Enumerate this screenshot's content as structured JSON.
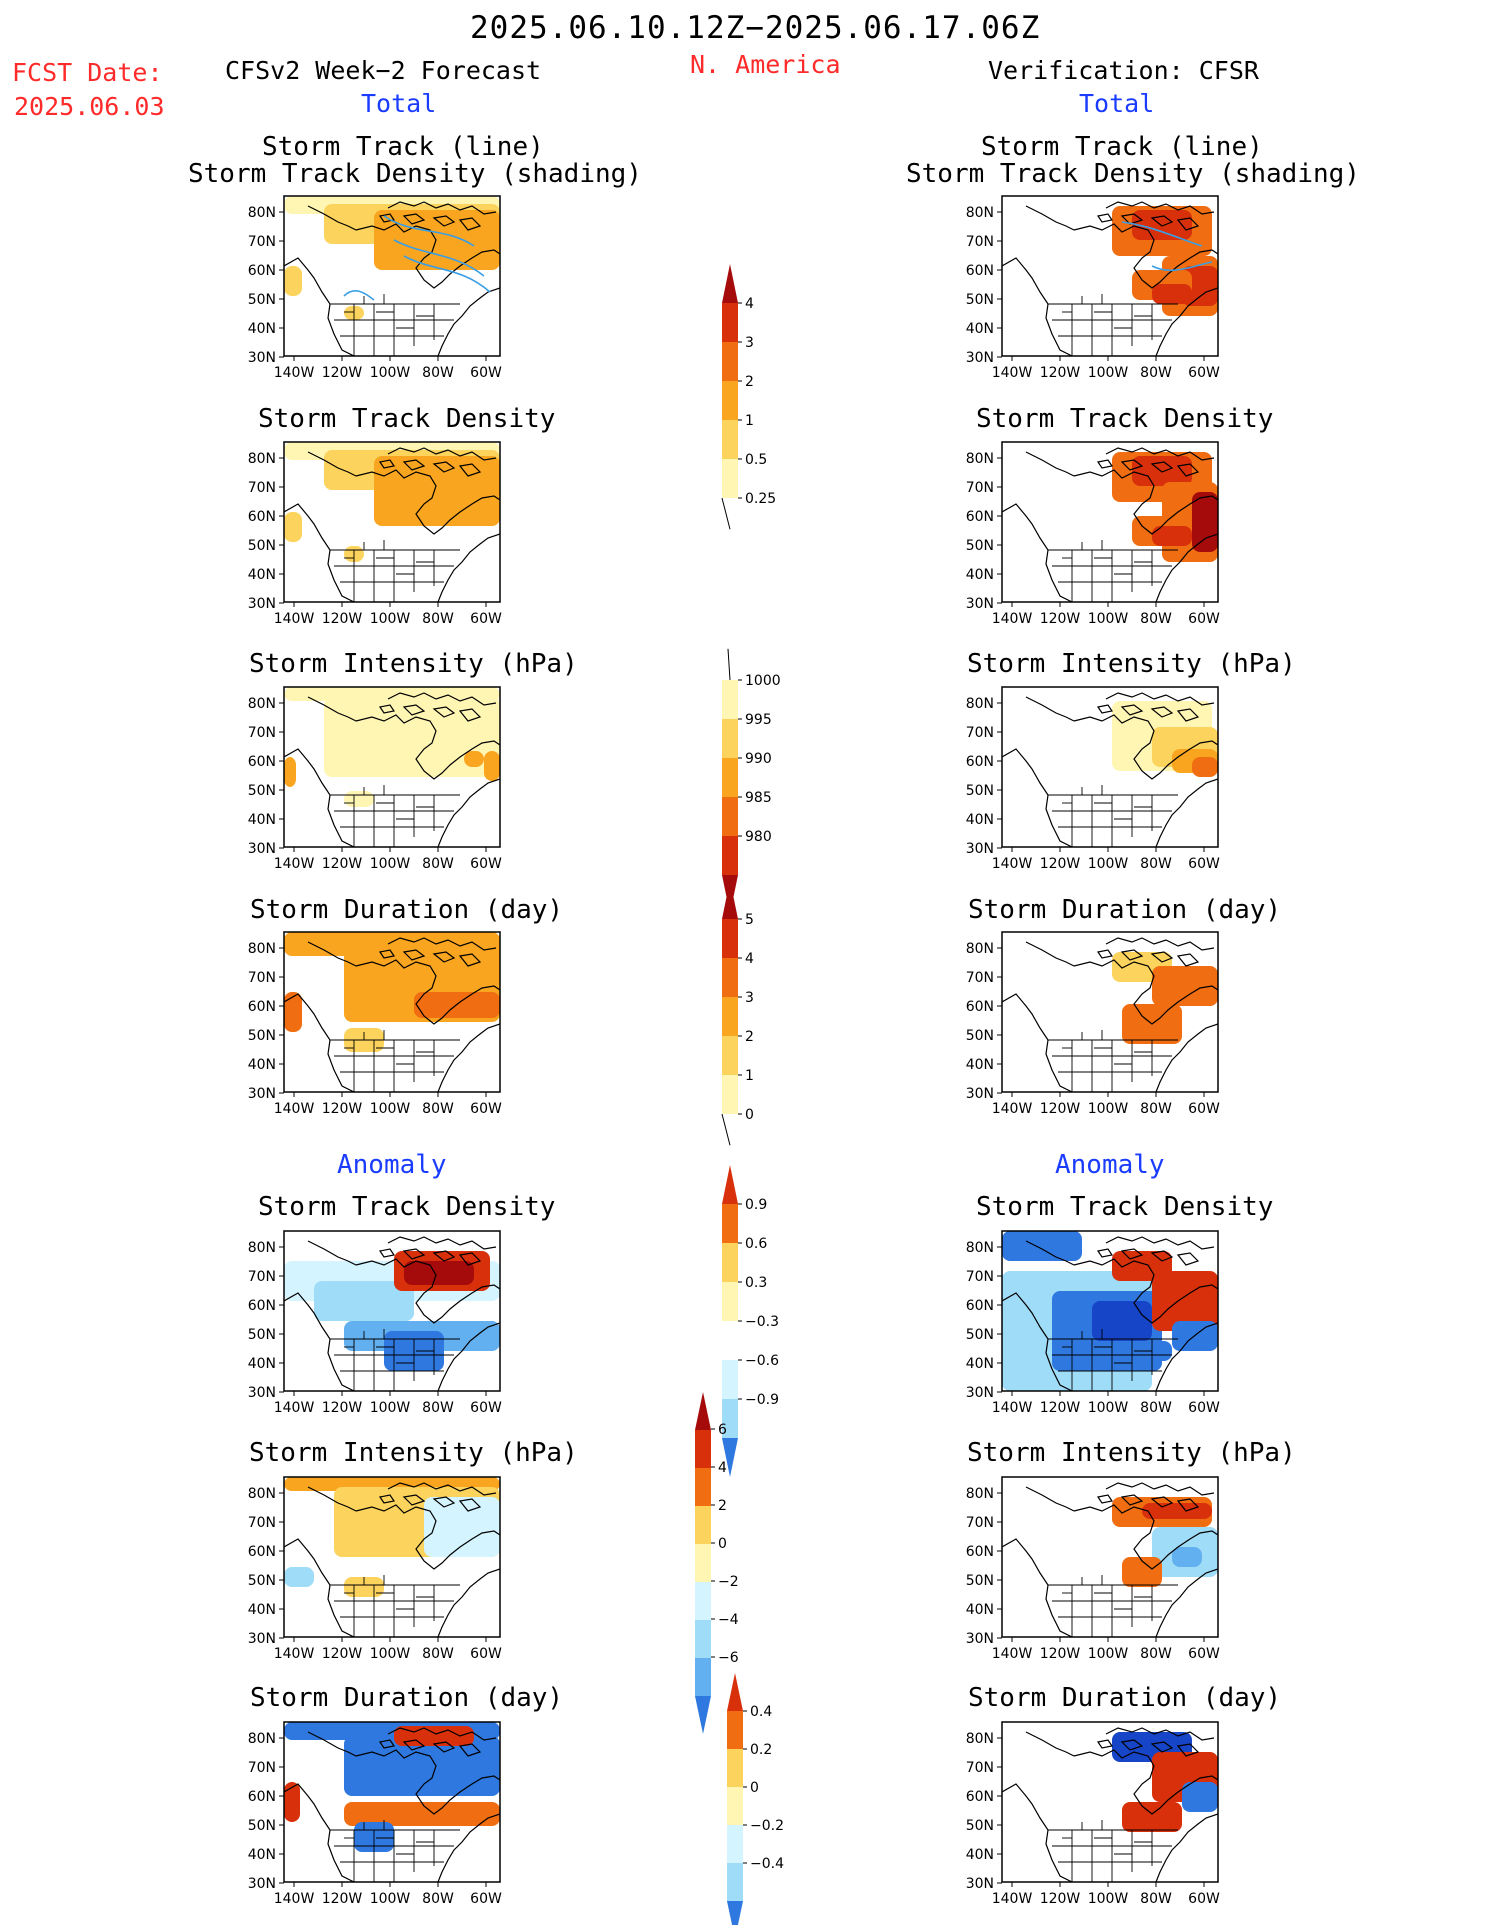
{
  "header": {
    "title": "2025.06.10.12Z−2025.06.17.06Z",
    "region": "N. America",
    "fcst_label": "FCST Date:",
    "fcst_date": "2025.06.03",
    "left_title": "CFSv2 Week−2 Forecast",
    "right_title": "Verification: CFSR",
    "left_section": "Total",
    "right_section": "Total"
  },
  "sections": {
    "total": "Total",
    "anomaly_left": "Anomaly",
    "anomaly_right": "Anomaly"
  },
  "panel_titles": {
    "track_line": "Storm Track (line)",
    "track_shading": "Storm Track Density (shading)",
    "density": "Storm Track Density",
    "intensity": "Storm Intensity (hPa)",
    "duration": "Storm Duration (day)"
  },
  "axes": {
    "lat_labels": [
      "80N",
      "70N",
      "60N",
      "50N",
      "40N",
      "30N"
    ],
    "lon_labels": [
      "140W",
      "120W",
      "100W",
      "80W",
      "60W"
    ]
  },
  "colorbars": {
    "density_total": [
      "4",
      "3",
      "2",
      "1",
      "0.5",
      "0.25"
    ],
    "intensity_total": [
      "1000",
      "995",
      "990",
      "985",
      "980"
    ],
    "duration_total": [
      "5",
      "4",
      "3",
      "2",
      "1",
      "0"
    ],
    "density_anom": [
      "0.9",
      "0.6",
      "0.3",
      "−0.3",
      "−0.6",
      "−0.9"
    ],
    "intensity_anom": [
      "6",
      "4",
      "2",
      "0",
      "−2",
      "−4",
      "−6"
    ],
    "duration_anom": [
      "0.4",
      "0.2",
      "0",
      "−0.2",
      "−0.4"
    ]
  },
  "colors": {
    "warm": [
      "#fff6b4",
      "#fcd35c",
      "#f9a520",
      "#f06d12",
      "#d9300c",
      "#a50b0b"
    ],
    "cool": [
      "#d4f4ff",
      "#9fdcf8",
      "#62b0f0",
      "#2f78e0",
      "#1745c7"
    ],
    "track_line": "#3a9ee5"
  }
}
